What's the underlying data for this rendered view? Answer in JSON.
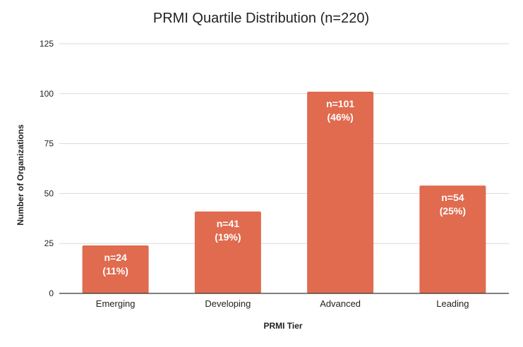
{
  "chart_data": {
    "type": "bar",
    "title": "PRMI Quartile Distribution (n=220)",
    "xlabel": "PRMI Tier",
    "ylabel": "Number of Organizations",
    "categories": [
      "Emerging",
      "Developing",
      "Advanced",
      "Leading"
    ],
    "values": [
      24,
      41,
      101,
      54
    ],
    "data_labels": [
      [
        "n=24",
        "(11%)"
      ],
      [
        "n=41",
        "(19%)"
      ],
      [
        "n=101",
        "(46%)"
      ],
      [
        "n=54",
        "(25%)"
      ]
    ],
    "ylim": [
      0,
      125
    ],
    "yticks": [
      0,
      25,
      50,
      75,
      100,
      125
    ],
    "grid": true,
    "legend": "none",
    "bar_color": "#e06b4f"
  }
}
